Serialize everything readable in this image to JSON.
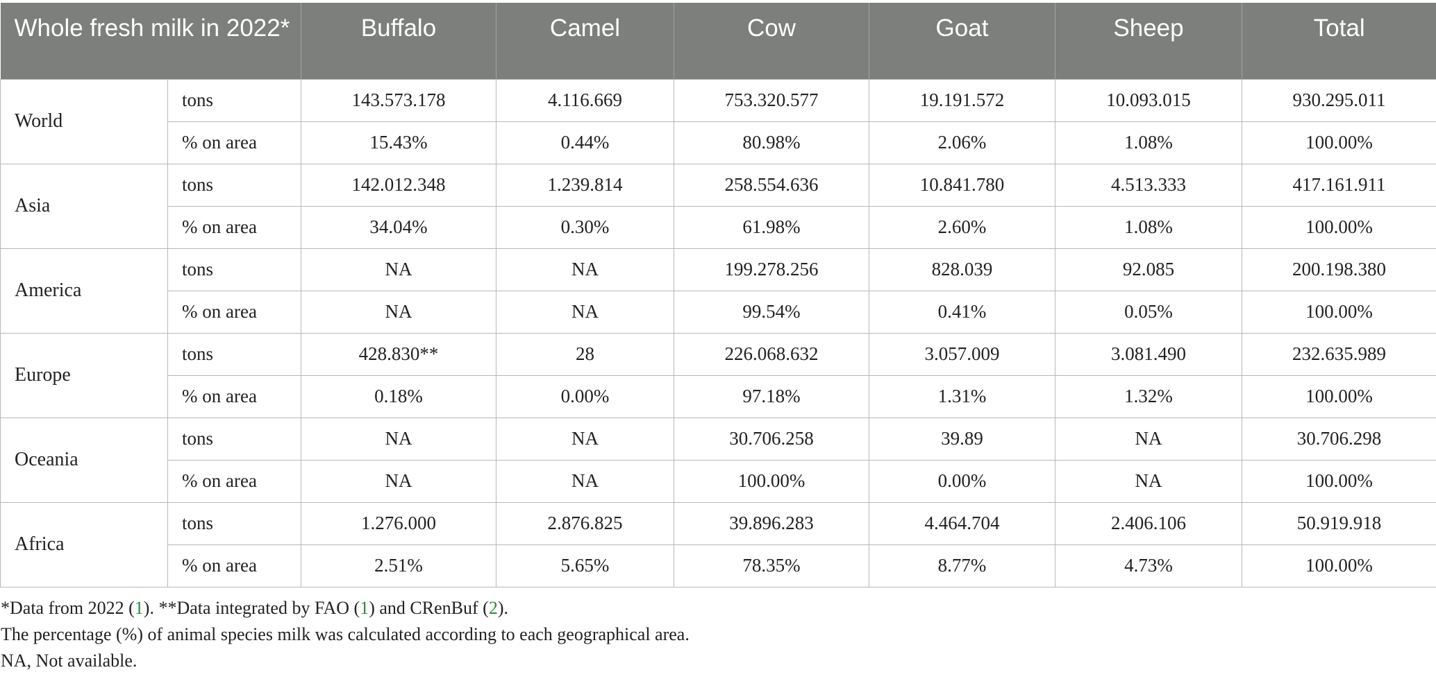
{
  "table": {
    "header": {
      "title": "Whole fresh milk in 2022*",
      "columns": [
        "Buffalo",
        "Camel",
        "Cow",
        "Goat",
        "Sheep",
        "Total"
      ]
    },
    "regions": [
      {
        "name": "World",
        "rows": [
          {
            "unit": "tons",
            "values": [
              "143.573.178",
              "4.116.669",
              "753.320.577",
              "19.191.572",
              "10.093.015",
              "930.295.011"
            ]
          },
          {
            "unit": "% on area",
            "values": [
              "15.43%",
              "0.44%",
              "80.98%",
              "2.06%",
              "1.08%",
              "100.00%"
            ]
          }
        ]
      },
      {
        "name": "Asia",
        "rows": [
          {
            "unit": "tons",
            "values": [
              "142.012.348",
              "1.239.814",
              "258.554.636",
              "10.841.780",
              "4.513.333",
              "417.161.911"
            ]
          },
          {
            "unit": "% on area",
            "values": [
              "34.04%",
              "0.30%",
              "61.98%",
              "2.60%",
              "1.08%",
              "100.00%"
            ]
          }
        ]
      },
      {
        "name": "America",
        "rows": [
          {
            "unit": "tons",
            "values": [
              "NA",
              "NA",
              "199.278.256",
              "828.039",
              "92.085",
              "200.198.380"
            ]
          },
          {
            "unit": "% on area",
            "values": [
              "NA",
              "NA",
              "99.54%",
              "0.41%",
              "0.05%",
              "100.00%"
            ]
          }
        ]
      },
      {
        "name": "Europe",
        "rows": [
          {
            "unit": "tons",
            "values": [
              "428.830**",
              "28",
              "226.068.632",
              "3.057.009",
              "3.081.490",
              "232.635.989"
            ]
          },
          {
            "unit": "% on area",
            "values": [
              "0.18%",
              "0.00%",
              "97.18%",
              "1.31%",
              "1.32%",
              "100.00%"
            ]
          }
        ]
      },
      {
        "name": "Oceania",
        "rows": [
          {
            "unit": "tons",
            "values": [
              "NA",
              "NA",
              "30.706.258",
              "39.89",
              "NA",
              "30.706.298"
            ]
          },
          {
            "unit": "% on area",
            "values": [
              "NA",
              "NA",
              "100.00%",
              "0.00%",
              "NA",
              "100.00%"
            ]
          }
        ]
      },
      {
        "name": "Africa",
        "rows": [
          {
            "unit": "tons",
            "values": [
              "1.276.000",
              "2.876.825",
              "39.896.283",
              "4.464.704",
              "2.406.106",
              "50.919.918"
            ]
          },
          {
            "unit": "% on area",
            "values": [
              "2.51%",
              "5.65%",
              "78.35%",
              "8.77%",
              "4.73%",
              "100.00%"
            ]
          }
        ]
      }
    ]
  },
  "footnotes": {
    "line1": {
      "part1": "*Data from 2022 (",
      "ref1": "1",
      "part2": "). **Data integrated by FAO (",
      "ref2": "1",
      "part3": ") and CRenBuf (",
      "ref3": "2",
      "part4": ")."
    },
    "line2": "The percentage (%) of animal species milk was calculated according to each geographical area.",
    "line3": "NA, Not available."
  },
  "colors": {
    "header_bg": "#7d7f7d",
    "header_text": "#ffffff",
    "grid": "#b8b8b8",
    "reference_link": "#2e8b3a"
  }
}
